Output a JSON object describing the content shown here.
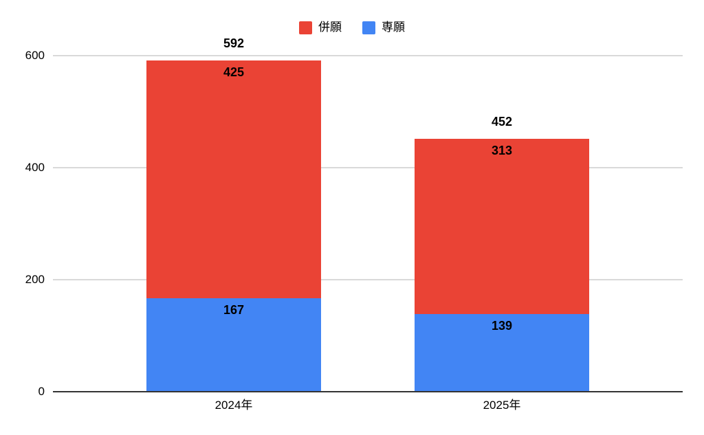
{
  "chart_data": {
    "type": "bar",
    "stacked": true,
    "title": "",
    "categories": [
      "2024年",
      "2025年"
    ],
    "series": [
      {
        "name": "専願",
        "color": "#4285f4",
        "values": [
          167,
          139
        ]
      },
      {
        "name": "併願",
        "color": "#ea4335",
        "values": [
          425,
          313
        ]
      }
    ],
    "totals": [
      592,
      452
    ],
    "legend": [
      {
        "label": "併願",
        "color": "#ea4335"
      },
      {
        "label": "専願",
        "color": "#4285f4"
      }
    ],
    "legend_position": "top",
    "xlabel": "",
    "ylabel": "",
    "y_ticks": [
      0,
      200,
      400,
      600
    ],
    "ylim": [
      0,
      600
    ],
    "grid": true,
    "colors": {
      "gridline": "#d9d9d9",
      "axis": "#333333",
      "label": "#000000",
      "background": "#ffffff"
    }
  }
}
